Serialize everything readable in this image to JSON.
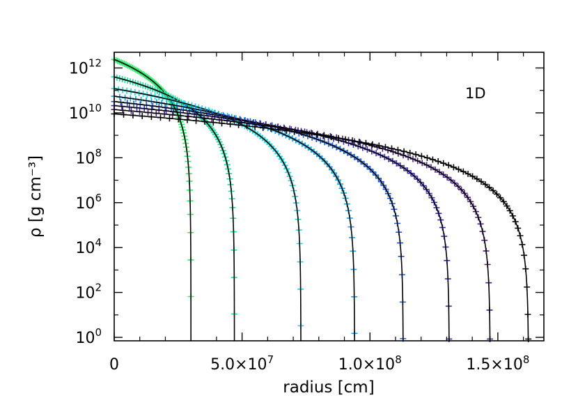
{
  "chart_data": {
    "type": "line",
    "title": "",
    "annotation": "1D",
    "xlabel": "radius [cm]",
    "ylabel": "ρ [g cm⁻³]",
    "xscale": "linear",
    "yscale": "log",
    "xlim": [
      0,
      168000000.0
    ],
    "ylim": [
      0.7,
      5000000000000.0
    ],
    "x_ticks": [
      {
        "value": 0,
        "label": "0"
      },
      {
        "value": 50000000.0,
        "label": "5.0×10",
        "exp": "7"
      },
      {
        "value": 100000000.0,
        "label": "1.0×10",
        "exp": "8"
      },
      {
        "value": 150000000.0,
        "label": "1.5×10",
        "exp": "8"
      }
    ],
    "y_ticks": [
      {
        "value": 1.0,
        "label": "10",
        "exp": "0"
      },
      {
        "value": 100.0,
        "label": "10",
        "exp": "2"
      },
      {
        "value": 10000.0,
        "label": "10",
        "exp": "4"
      },
      {
        "value": 1000000.0,
        "label": "10",
        "exp": "6"
      },
      {
        "value": 100000000.0,
        "label": "10",
        "exp": "8"
      },
      {
        "value": 10000000000.0,
        "label": "10",
        "exp": "10"
      },
      {
        "value": 1000000000000.0,
        "label": "10",
        "exp": "12"
      }
    ],
    "grid": false,
    "legend": "none",
    "marker_style": "plus markers with black solid model line",
    "series": [
      {
        "color": "#2eea6a",
        "radius_edge": 30000000.0,
        "central_density": 2400000000000.0
      },
      {
        "color": "#22d9a0",
        "radius_edge": 47000000.0,
        "central_density": 400000000000.0
      },
      {
        "color": "#1fd6d6",
        "radius_edge": 73000000.0,
        "central_density": 120000000000.0
      },
      {
        "color": "#18a2dc",
        "radius_edge": 94000000.0,
        "central_density": 55000000000.0
      },
      {
        "color": "#1c58c8",
        "radius_edge": 113000000.0,
        "central_density": 32000000000.0
      },
      {
        "color": "#3a2ea8",
        "radius_edge": 131000000.0,
        "central_density": 21000000000.0
      },
      {
        "color": "#4a1f7a",
        "radius_edge": 147000000.0,
        "central_density": 14000000000.0
      },
      {
        "color": "#0a0a0a",
        "radius_edge": 162000000.0,
        "central_density": 9000000000.0
      }
    ]
  }
}
